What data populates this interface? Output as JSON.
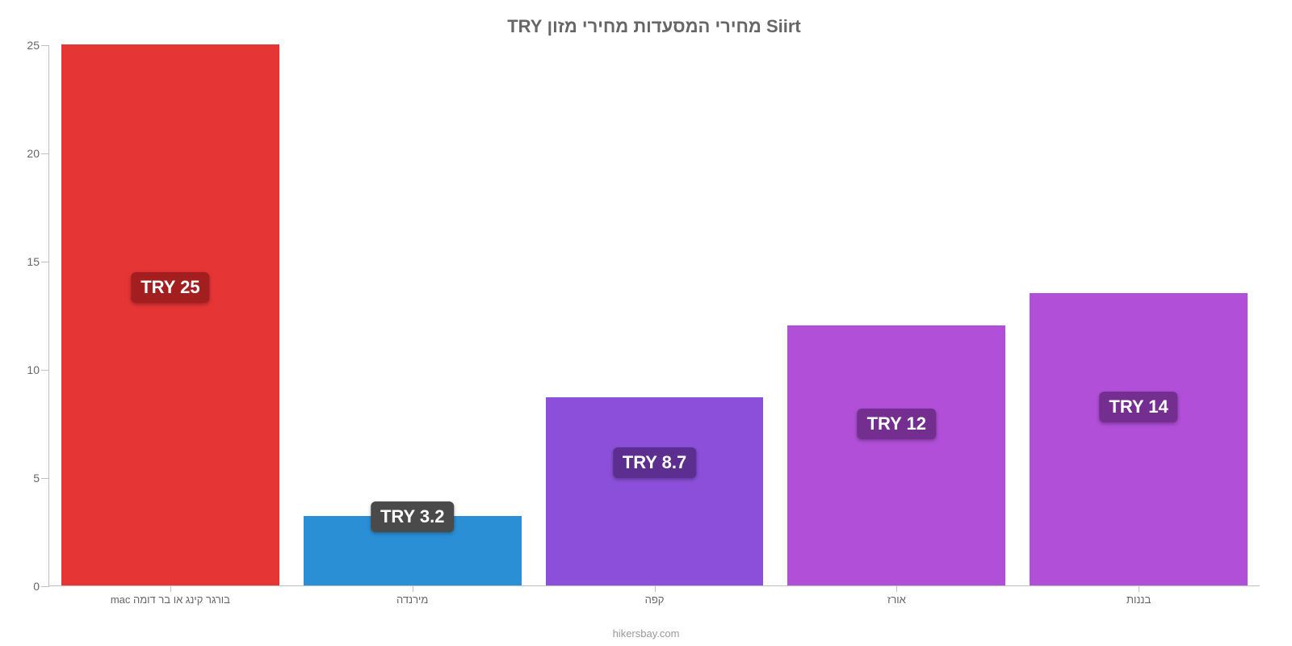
{
  "chart": {
    "type": "bar",
    "title": "Siirt מחירי המסעדות מחירי מזון TRY",
    "title_fontsize": 22,
    "title_color": "#666666",
    "background_color": "#ffffff",
    "axis_color": "#c0c0c0",
    "label_color": "#666666",
    "label_fontsize": 14,
    "x_label_fontsize": 13,
    "ylim": [
      0,
      25
    ],
    "ytick_step": 5,
    "yticks": [
      0,
      5,
      10,
      15,
      20,
      25
    ],
    "bar_width_pct": 18,
    "data_label_fontsize": 22,
    "categories": [
      "בורגר קינג או בר דומה mac",
      "מירנדה",
      "קפה",
      "אורז",
      "בננות"
    ],
    "values": [
      25,
      3.2,
      8.7,
      12,
      13.5
    ],
    "data_labels": [
      "TRY 25",
      "TRY 3.2",
      "TRY 8.7",
      "TRY 12",
      "TRY 14"
    ],
    "bar_colors": [
      "#e63535",
      "#2b8fd6",
      "#8b4fd9",
      "#b14fd9",
      "#b14fd9"
    ],
    "label_bg_colors": [
      "#a31f1f",
      "#4a4a4a",
      "#5c2e8f",
      "#732e8f",
      "#732e8f"
    ],
    "label_y_values": [
      13.8,
      3.2,
      5.7,
      7.5,
      8.3
    ],
    "footer": "hikersbay.com",
    "footer_color": "#999999"
  }
}
